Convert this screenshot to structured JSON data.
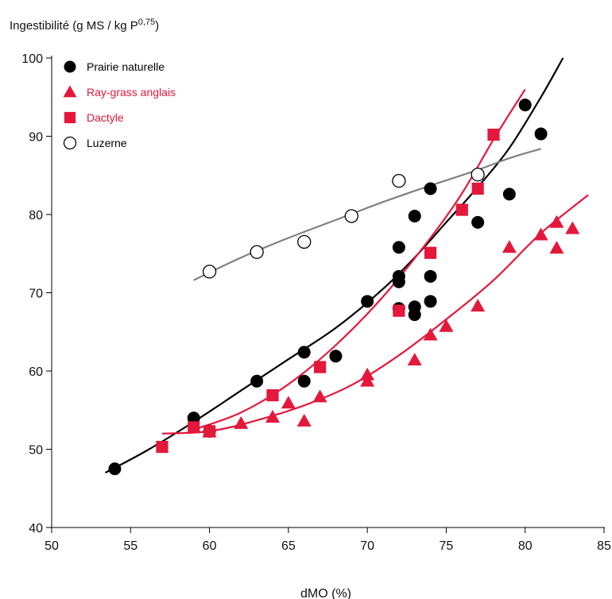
{
  "chart_data": {
    "type": "scatter",
    "ylabel_main": "Ingestibilité (g MS / kg P",
    "ylabel_exp": "0,75",
    "ylabel_close": ")",
    "xlabel": "dMO (%)",
    "xlim": [
      50,
      85
    ],
    "ylim": [
      40,
      100
    ],
    "x_ticks": [
      50,
      55,
      60,
      65,
      70,
      75,
      80,
      85
    ],
    "y_ticks": [
      40,
      50,
      60,
      70,
      80,
      90,
      100
    ],
    "legend_position": "top-left",
    "series": [
      {
        "name": "Prairie naturelle",
        "marker": "circle-filled",
        "color": "#000000",
        "points": [
          [
            54,
            47.5
          ],
          [
            59,
            54
          ],
          [
            60,
            52.3
          ],
          [
            63,
            58.7
          ],
          [
            66,
            62.4
          ],
          [
            66,
            58.7
          ],
          [
            68,
            61.9
          ],
          [
            70,
            68.9
          ],
          [
            72,
            75.8
          ],
          [
            72,
            72.1
          ],
          [
            72,
            71.4
          ],
          [
            72,
            68
          ],
          [
            73,
            79.8
          ],
          [
            73,
            68.2
          ],
          [
            73,
            67.2
          ],
          [
            74,
            83.3
          ],
          [
            74,
            72.1
          ],
          [
            74,
            68.9
          ],
          [
            77,
            79
          ],
          [
            79,
            82.6
          ],
          [
            80,
            94
          ],
          [
            81,
            90.3
          ]
        ],
        "curve": [
          [
            53.4,
            47
          ],
          [
            56,
            49.8
          ],
          [
            59,
            53.5
          ],
          [
            62,
            57.5
          ],
          [
            65,
            61.5
          ],
          [
            68,
            65.5
          ],
          [
            71,
            70.5
          ],
          [
            73,
            74.5
          ],
          [
            75,
            79
          ],
          [
            77,
            83.5
          ],
          [
            79,
            88.5
          ],
          [
            81,
            95
          ],
          [
            82.4,
            100
          ]
        ]
      },
      {
        "name": "Ray-grass anglais",
        "marker": "triangle",
        "color": "#e3183b",
        "points": [
          [
            60,
            52.2
          ],
          [
            62,
            53.3
          ],
          [
            64,
            54.1
          ],
          [
            65,
            55.9
          ],
          [
            66,
            53.6
          ],
          [
            67,
            56.7
          ],
          [
            70,
            58.7
          ],
          [
            70,
            59.5
          ],
          [
            73,
            61.4
          ],
          [
            74,
            64.6
          ],
          [
            75,
            65.7
          ],
          [
            77,
            68.3
          ],
          [
            79,
            75.8
          ],
          [
            81,
            77.4
          ],
          [
            82,
            79
          ],
          [
            82,
            75.7
          ],
          [
            83,
            78.2
          ]
        ],
        "curve": [
          [
            57,
            52
          ],
          [
            60,
            52.3
          ],
          [
            63,
            53.7
          ],
          [
            66,
            55.6
          ],
          [
            69,
            58.2
          ],
          [
            72,
            62
          ],
          [
            75,
            66.6
          ],
          [
            78,
            71.6
          ],
          [
            81,
            77.6
          ],
          [
            84,
            82.5
          ]
        ]
      },
      {
        "name": "Dactyle",
        "marker": "square",
        "color": "#e3183b",
        "points": [
          [
            57,
            50.3
          ],
          [
            59,
            52.8
          ],
          [
            60,
            52.3
          ],
          [
            64,
            56.9
          ],
          [
            67,
            60.5
          ],
          [
            72,
            67.7
          ],
          [
            74,
            75.1
          ],
          [
            76,
            80.6
          ],
          [
            77,
            83.3
          ],
          [
            78,
            90.2
          ]
        ],
        "curve": [
          [
            59,
            52.5
          ],
          [
            62,
            54.7
          ],
          [
            65,
            58.3
          ],
          [
            68,
            63.3
          ],
          [
            71,
            69.5
          ],
          [
            74,
            77
          ],
          [
            76,
            82.7
          ],
          [
            78,
            89.6
          ],
          [
            80,
            96
          ]
        ]
      },
      {
        "name": "Luzerne",
        "marker": "circle-open",
        "color": "#000000",
        "points": [
          [
            60,
            72.7
          ],
          [
            63,
            75.2
          ],
          [
            66,
            76.5
          ],
          [
            69,
            79.8
          ],
          [
            72,
            84.3
          ],
          [
            77,
            85.1
          ]
        ],
        "curve": [
          [
            59,
            71.6
          ],
          [
            62,
            74.5
          ],
          [
            65,
            77
          ],
          [
            68,
            79.3
          ],
          [
            71,
            81.6
          ],
          [
            74,
            83.7
          ],
          [
            77,
            85.7
          ],
          [
            79,
            87.2
          ],
          [
            81,
            88.4
          ]
        ],
        "curve_color": "#808080"
      }
    ]
  }
}
